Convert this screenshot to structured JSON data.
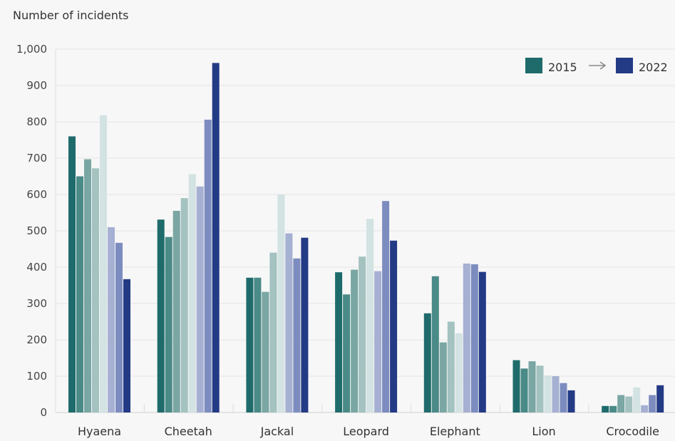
{
  "chart_data": {
    "type": "bar",
    "ylabel": "Number of incidents",
    "xlabel": "",
    "ylim": [
      0,
      1000
    ],
    "yticks": [
      0,
      100,
      200,
      300,
      400,
      500,
      600,
      700,
      800,
      900,
      1000
    ],
    "ytick_labels": [
      "0",
      "100",
      "200",
      "300",
      "400",
      "500",
      "600",
      "700",
      "800",
      "900",
      "1,000"
    ],
    "grid": true,
    "legend": {
      "placement": "top-right",
      "start": "2015",
      "end": "2022",
      "start_color": "#1f6b6b",
      "end_color": "#233a85"
    },
    "categories": [
      "Hyaena",
      "Cheetah",
      "Jackal",
      "Leopard",
      "Elephant",
      "Lion",
      "Crocodile"
    ],
    "series": [
      {
        "values": [
          760,
          531,
          371,
          386,
          273,
          144,
          18
        ],
        "color": "#1f6b6b"
      },
      {
        "values": [
          650,
          483,
          371,
          325,
          375,
          121,
          18
        ],
        "color": "#4a8a87"
      },
      {
        "values": [
          697,
          555,
          332,
          393,
          193,
          141,
          48
        ],
        "color": "#7aa6a3"
      },
      {
        "values": [
          672,
          590,
          440,
          429,
          250,
          129,
          44
        ],
        "color": "#a3c2c0"
      },
      {
        "values": [
          818,
          656,
          600,
          533,
          218,
          102,
          69
        ],
        "color": "#d3e2e2"
      },
      {
        "values": [
          510,
          622,
          493,
          389,
          410,
          100,
          20
        ],
        "color": "#a5b0d2"
      },
      {
        "values": [
          467,
          806,
          424,
          582,
          408,
          81,
          48
        ],
        "color": "#7d8cbf"
      },
      {
        "values": [
          367,
          962,
          481,
          473,
          387,
          61,
          75
        ],
        "color": "#233a85"
      }
    ]
  }
}
